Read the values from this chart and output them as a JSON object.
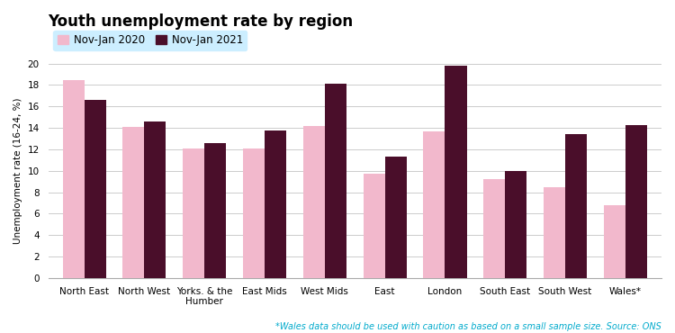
{
  "title": "Youth unemployment rate by region",
  "ylabel": "Unemployment rate (16-24, %)",
  "categories": [
    "North East",
    "North West",
    "Yorks. & the\nHumber",
    "East Mids",
    "West Mids",
    "East",
    "London",
    "South East",
    "South West",
    "Wales*"
  ],
  "series": {
    "Nov-Jan 2020": [
      18.5,
      14.1,
      12.1,
      12.1,
      14.2,
      9.7,
      13.7,
      9.2,
      8.5,
      6.8
    ],
    "Nov-Jan 2021": [
      16.6,
      14.6,
      12.6,
      13.8,
      18.1,
      11.3,
      19.8,
      10.0,
      13.4,
      14.3
    ]
  },
  "colors": {
    "Nov-Jan 2020": "#f2b8cc",
    "Nov-Jan 2021": "#4a0e2a"
  },
  "legend_bg_color": "#cceeff",
  "ylim": [
    0,
    20
  ],
  "yticks": [
    0,
    2,
    4,
    6,
    8,
    10,
    12,
    14,
    16,
    18,
    20
  ],
  "footnote": "*Wales data should be used with caution as based on a small sample size. Source: ONS",
  "footnote_color": "#00aacc",
  "background_color": "#ffffff",
  "grid_color": "#cccccc",
  "bar_width": 0.36,
  "title_fontsize": 12,
  "legend_fontsize": 8.5,
  "tick_fontsize": 7.5,
  "ylabel_fontsize": 7.5,
  "footnote_fontsize": 7.0
}
